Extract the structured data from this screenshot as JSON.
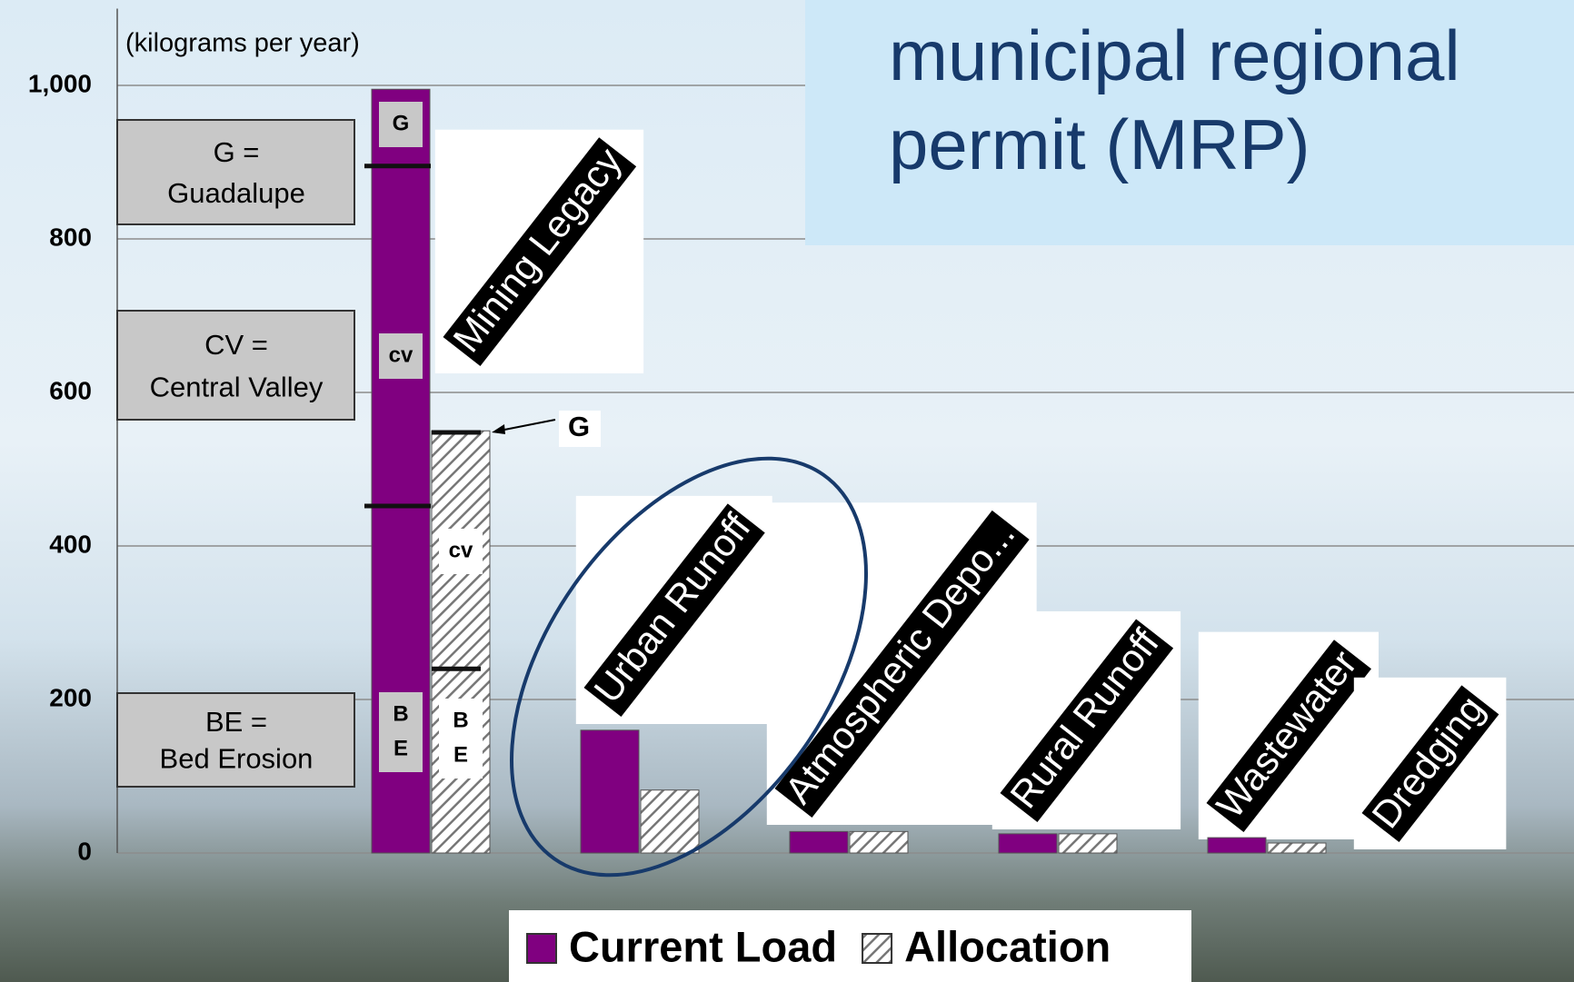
{
  "chart_data": {
    "type": "bar",
    "title": "municipal regional permit (MRP)",
    "y_label": "(kilograms per year)",
    "categories": [
      "Mining Legacy",
      "Urban Runoff",
      "Atmospheric Depo...",
      "Rural Runoff",
      "Wastewater",
      "Dredging"
    ],
    "series": [
      {
        "name": "Current Load",
        "color": "#800080",
        "values": [
          995,
          160,
          28,
          25,
          20,
          null
        ],
        "segment_bounds": [
          895,
          452
        ],
        "segment_labels": [
          [
            "G"
          ],
          [
            "cv"
          ],
          [
            "B",
            "E"
          ]
        ]
      },
      {
        "name": "Allocation",
        "color": "hatch",
        "values": [
          550,
          82,
          28,
          25,
          13,
          null
        ],
        "segment_bounds": [
          548,
          240
        ],
        "segment_labels": [
          [
            "cv"
          ],
          [
            "B",
            "E"
          ]
        ]
      }
    ],
    "ylim": [
      0,
      1100
    ],
    "yticks": [
      0,
      200,
      400,
      600,
      800,
      {
        "value": 1000,
        "label": "1,000"
      }
    ],
    "grid": true,
    "key_boxes": [
      {
        "lines": [
          "G =",
          "Guadalupe"
        ]
      },
      {
        "lines": [
          "CV =",
          "Central Valley"
        ]
      },
      {
        "lines": [
          "BE =",
          "Bed Erosion"
        ]
      }
    ],
    "arrow_note": "G",
    "legend": "bottom"
  }
}
